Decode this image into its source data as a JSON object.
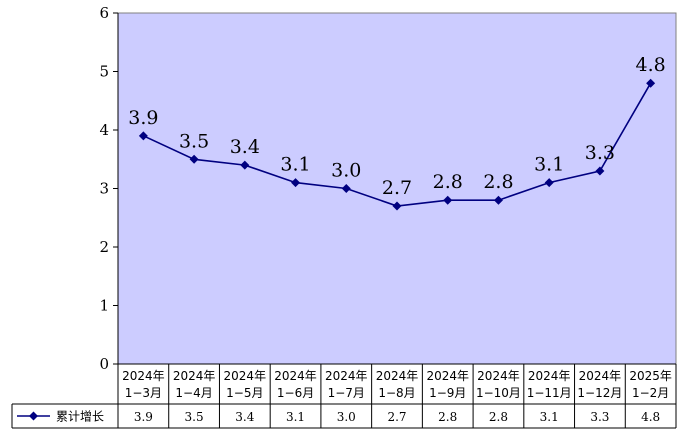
{
  "chart_data": {
    "type": "line",
    "title": "",
    "xlabel": "",
    "ylabel": "",
    "ylim": [
      0,
      6
    ],
    "y_ticks": [
      0,
      1,
      2,
      3,
      4,
      5,
      6
    ],
    "grid": false,
    "legend": "bottom-left (data table)",
    "categories": [
      [
        "2024年",
        "1−3月"
      ],
      [
        "2024年",
        "1−4月"
      ],
      [
        "2024年",
        "1−5月"
      ],
      [
        "2024年",
        "1−6月"
      ],
      [
        "2024年",
        "1−7月"
      ],
      [
        "2024年",
        "1−8月"
      ],
      [
        "2024年",
        "1−9月"
      ],
      [
        "2024年",
        "1−10月"
      ],
      [
        "2024年",
        "1−11月"
      ],
      [
        "2024年",
        "1−12月"
      ],
      [
        "2025年",
        "1−2月"
      ]
    ],
    "series": [
      {
        "name": "累计增长",
        "values": [
          3.9,
          3.5,
          3.4,
          3.1,
          3.0,
          2.7,
          2.8,
          2.8,
          3.1,
          3.3,
          4.8
        ],
        "labels": [
          "3.9",
          "3.5",
          "3.4",
          "3.1",
          "3.0",
          "2.7",
          "2.8",
          "2.8",
          "3.1",
          "3.3",
          "4.8"
        ],
        "color": "#000080",
        "marker": "diamond"
      }
    ],
    "plot_background": "#ccccff"
  }
}
